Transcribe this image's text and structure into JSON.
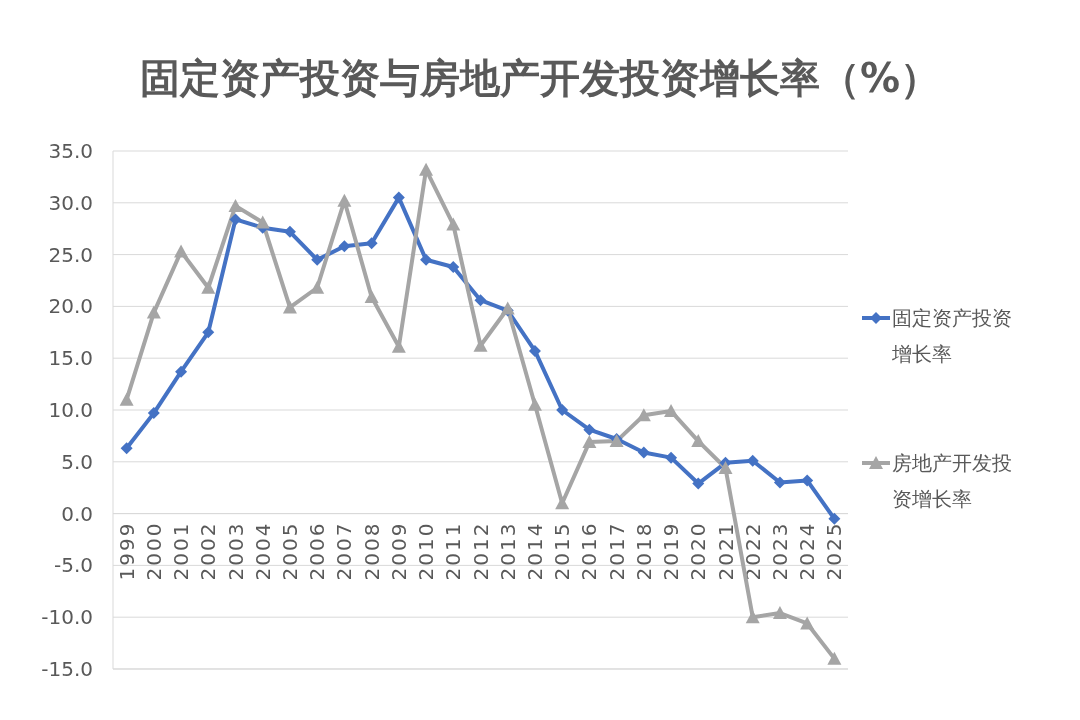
{
  "chart_data": {
    "type": "line",
    "title": "固定资产投资与房地产开发投资增长率（%）",
    "categories": [
      "1999",
      "2000",
      "2001",
      "2002",
      "2003",
      "2004",
      "2005",
      "2006",
      "2007",
      "2008",
      "2009",
      "2010",
      "2011",
      "2012",
      "2013",
      "2014",
      "2015",
      "2016",
      "2017",
      "2018",
      "2019",
      "2020",
      "2021",
      "2022",
      "2023",
      "2024",
      "2025"
    ],
    "series": [
      {
        "name": "固定资产投资增长率",
        "color": "#4472c4",
        "marker": "diamond",
        "values": [
          6.3,
          9.7,
          13.7,
          17.5,
          28.4,
          27.6,
          27.2,
          24.5,
          25.8,
          26.1,
          30.5,
          24.5,
          23.8,
          20.6,
          19.6,
          15.7,
          10.0,
          8.1,
          7.2,
          5.9,
          5.4,
          2.9,
          4.9,
          5.1,
          3.0,
          3.2,
          -0.5
        ]
      },
      {
        "name": "房地产开发投资增长率",
        "color": "#a5a5a5",
        "marker": "triangle",
        "values": [
          11.0,
          19.4,
          25.3,
          21.8,
          29.7,
          28.1,
          19.9,
          21.8,
          30.2,
          20.9,
          16.1,
          33.2,
          27.9,
          16.2,
          19.8,
          10.5,
          1.0,
          6.9,
          7.0,
          9.5,
          9.9,
          7.0,
          4.4,
          -10.0,
          -9.6,
          -10.6,
          -14.0
        ]
      }
    ],
    "ylim": [
      -15,
      35
    ],
    "yticks": [
      {
        "value": -15,
        "label": "-15.0"
      },
      {
        "value": -10,
        "label": "-10.0"
      },
      {
        "value": -5,
        "label": "-5.0"
      },
      {
        "value": 0,
        "label": "0.0"
      },
      {
        "value": 5,
        "label": "5.0"
      },
      {
        "value": 10,
        "label": "10.0"
      },
      {
        "value": 15,
        "label": "15.0"
      },
      {
        "value": 20,
        "label": "20.0"
      },
      {
        "value": 25,
        "label": "25.0"
      },
      {
        "value": 30,
        "label": "30.0"
      },
      {
        "value": 35,
        "label": "35.0"
      }
    ],
    "grid": "y",
    "legend": "right",
    "line_style": "solid"
  }
}
